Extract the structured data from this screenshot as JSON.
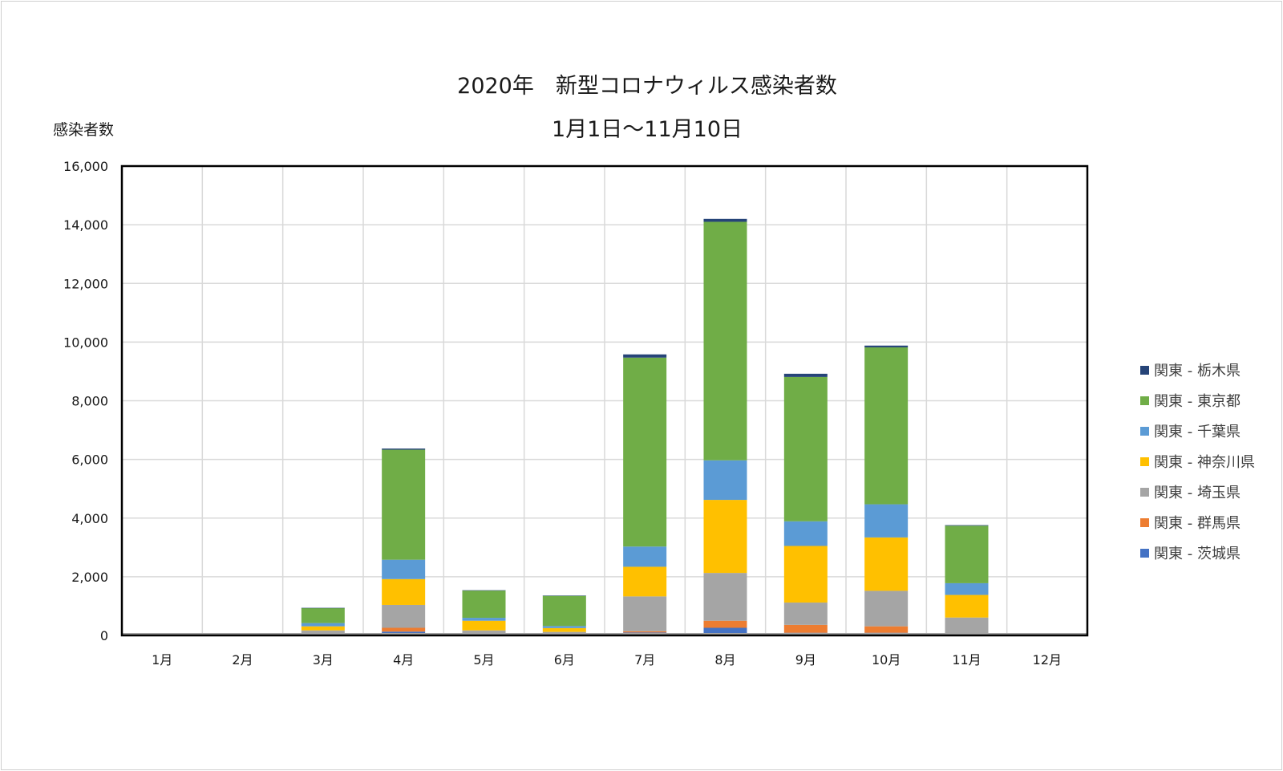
{
  "chart_data": {
    "type": "bar",
    "stacked": true,
    "title": "2020年　新型コロナウィルス感染者数",
    "subtitle": "1月1日～11月10日",
    "ylabel": "感染者数",
    "xlabel": "",
    "ylim": [
      0,
      16000
    ],
    "yticks": [
      0,
      2000,
      4000,
      6000,
      8000,
      10000,
      12000,
      14000,
      16000
    ],
    "ytick_labels": [
      "0",
      "2,000",
      "4,000",
      "6,000",
      "8,000",
      "10,000",
      "12,000",
      "14,000",
      "16,000"
    ],
    "grid": true,
    "legend_position": "right",
    "categories": [
      "1月",
      "2月",
      "3月",
      "4月",
      "5月",
      "6月",
      "7月",
      "8月",
      "9月",
      "10月",
      "11月",
      "12月"
    ],
    "series": [
      {
        "name": "関東 - 茨城県",
        "color": "#4472c4",
        "values": [
          0,
          0,
          30,
          130,
          20,
          10,
          100,
          260,
          90,
          90,
          30,
          0
        ]
      },
      {
        "name": "関東 - 群馬県",
        "color": "#ed7d31",
        "values": [
          0,
          0,
          40,
          130,
          20,
          10,
          40,
          240,
          270,
          220,
          20,
          0
        ]
      },
      {
        "name": "関東 - 埼玉県",
        "color": "#a5a5a5",
        "values": [
          0,
          0,
          100,
          780,
          130,
          100,
          1190,
          1630,
          760,
          1210,
          560,
          0
        ]
      },
      {
        "name": "関東 - 神奈川県",
        "color": "#ffc000",
        "values": [
          0,
          0,
          140,
          880,
          330,
          130,
          1010,
          2490,
          1930,
          1820,
          770,
          0
        ]
      },
      {
        "name": "関東 - 千葉県",
        "color": "#5b9bd5",
        "values": [
          0,
          0,
          110,
          660,
          100,
          70,
          690,
          1350,
          840,
          1130,
          400,
          0
        ]
      },
      {
        "name": "関東 - 東京都",
        "color": "#70ad47",
        "values": [
          5,
          55,
          510,
          3750,
          930,
          1030,
          6440,
          8130,
          4920,
          5350,
          1960,
          0
        ]
      },
      {
        "name": "関東 - 栃木県",
        "color": "#264478",
        "values": [
          0,
          0,
          10,
          40,
          10,
          10,
          110,
          100,
          110,
          60,
          20,
          0
        ]
      }
    ]
  }
}
